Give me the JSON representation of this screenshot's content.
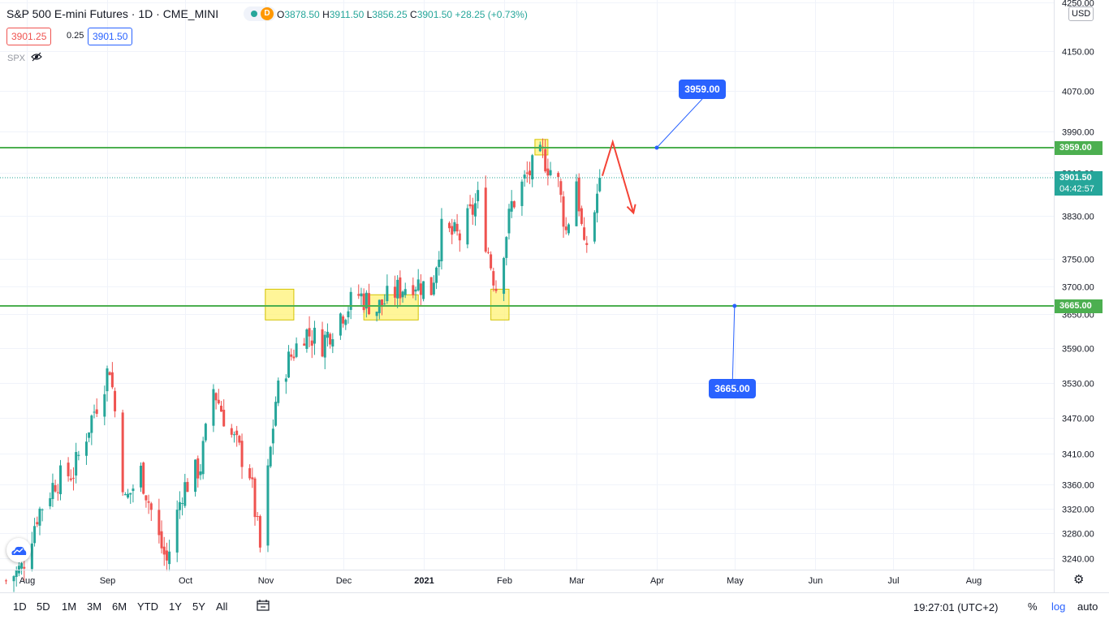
{
  "header": {
    "symbol_title": "S&P 500 E-mini Futures · 1D · CME_MINI",
    "status_badge": "D",
    "ohlc": {
      "o_label": "O",
      "o": "3878.50",
      "h_label": "H",
      "h": "3911.50",
      "l_label": "L",
      "l": "3856.25",
      "c_label": "C",
      "c": "3901.50",
      "change": "+28.25 (+0.73%)"
    },
    "bid": "3901.25",
    "spread": "0.25",
    "ask": "3901.50",
    "compare_symbol": "SPX",
    "eye_icon": "eye-hidden-icon",
    "currency": "USD"
  },
  "colors": {
    "up": "#26a69a",
    "down": "#ef5350",
    "hline": "#4caf50",
    "callout": "#2962ff",
    "arrow": "#f44336",
    "highlight": "#fff176"
  },
  "price_labels": {
    "resistance": "3959.00",
    "last_price": "3901.50",
    "countdown": "04:42:57",
    "support": "3665.00"
  },
  "callouts": {
    "top": "3959.00",
    "bottom": "3665.00"
  },
  "chart_data": {
    "type": "candlestick",
    "y_axis": {
      "scale": "log",
      "ticks": [
        "4250.00",
        "4150.00",
        "4070.00",
        "3990.00",
        "3910.00",
        "3830.00",
        "3750.00",
        "3700.00",
        "3650.00",
        "3590.00",
        "3530.00",
        "3470.00",
        "3410.00",
        "3360.00",
        "3320.00",
        "3280.00",
        "3240.00"
      ]
    },
    "x_axis": {
      "ticks": [
        {
          "label": "Aug",
          "date": "2020-08-01"
        },
        {
          "label": "Sep",
          "date": "2020-09-01"
        },
        {
          "label": "Oct",
          "date": "2020-10-01"
        },
        {
          "label": "Nov",
          "date": "2020-11-01"
        },
        {
          "label": "Dec",
          "date": "2020-12-01"
        },
        {
          "label": "2021",
          "date": "2021-01-01"
        },
        {
          "label": "Feb",
          "date": "2021-02-01"
        },
        {
          "label": "Mar",
          "date": "2021-03-01"
        },
        {
          "label": "Apr",
          "date": "2021-04-01"
        },
        {
          "label": "May",
          "date": "2021-05-01"
        },
        {
          "label": "Jun",
          "date": "2021-06-01"
        },
        {
          "label": "Jul",
          "date": "2021-07-01"
        },
        {
          "label": "Aug",
          "date": "2021-08-01"
        }
      ]
    },
    "candles_start": "2020-07-24",
    "candles_end": "2021-03-10",
    "close_path": [
      {
        "date": "2020-07-24",
        "close": 3205
      },
      {
        "date": "2020-07-30",
        "close": 3225
      },
      {
        "date": "2020-08-05",
        "close": 3310
      },
      {
        "date": "2020-08-12",
        "close": 3365
      },
      {
        "date": "2020-08-19",
        "close": 3380
      },
      {
        "date": "2020-08-26",
        "close": 3470
      },
      {
        "date": "2020-09-02",
        "close": 3560
      },
      {
        "date": "2020-09-08",
        "close": 3330
      },
      {
        "date": "2020-09-14",
        "close": 3380
      },
      {
        "date": "2020-09-21",
        "close": 3270
      },
      {
        "date": "2020-09-24",
        "close": 3235
      },
      {
        "date": "2020-09-30",
        "close": 3350
      },
      {
        "date": "2020-10-07",
        "close": 3390
      },
      {
        "date": "2020-10-12",
        "close": 3520
      },
      {
        "date": "2020-10-19",
        "close": 3440
      },
      {
        "date": "2020-10-26",
        "close": 3380
      },
      {
        "date": "2020-10-30",
        "close": 3255
      },
      {
        "date": "2020-11-05",
        "close": 3500
      },
      {
        "date": "2020-11-09",
        "close": 3560
      },
      {
        "date": "2020-11-16",
        "close": 3620
      },
      {
        "date": "2020-11-23",
        "close": 3600
      },
      {
        "date": "2020-11-30",
        "close": 3650
      },
      {
        "date": "2020-12-07",
        "close": 3685
      },
      {
        "date": "2020-12-14",
        "close": 3660
      },
      {
        "date": "2020-12-21",
        "close": 3690
      },
      {
        "date": "2020-12-28",
        "close": 3710
      },
      {
        "date": "2021-01-04",
        "close": 3695
      },
      {
        "date": "2021-01-08",
        "close": 3800
      },
      {
        "date": "2021-01-15",
        "close": 3790
      },
      {
        "date": "2021-01-22",
        "close": 3860
      },
      {
        "date": "2021-01-27",
        "close": 3740
      },
      {
        "date": "2021-01-29",
        "close": 3700
      },
      {
        "date": "2021-02-04",
        "close": 3850
      },
      {
        "date": "2021-02-10",
        "close": 3905
      },
      {
        "date": "2021-02-16",
        "close": 3945
      },
      {
        "date": "2021-02-22",
        "close": 3890
      },
      {
        "date": "2021-02-25",
        "close": 3800
      },
      {
        "date": "2021-03-01",
        "close": 3900
      },
      {
        "date": "2021-03-04",
        "close": 3760
      },
      {
        "date": "2021-03-08",
        "close": 3840
      },
      {
        "date": "2021-03-10",
        "close": 3901.5
      }
    ],
    "horizontal_lines": [
      {
        "price": 3959.0
      },
      {
        "price": 3665.0
      }
    ],
    "current_price": 3901.5,
    "highlight_zones": [
      {
        "from": "2020-11-01",
        "to": "2020-11-12",
        "low": 3640,
        "high": 3695
      },
      {
        "from": "2020-12-09",
        "to": "2020-12-30",
        "low": 3640,
        "high": 3685
      },
      {
        "from": "2021-01-27",
        "to": "2021-02-03",
        "low": 3640,
        "high": 3695
      },
      {
        "from": "2021-02-13",
        "to": "2021-02-18",
        "low": 3945,
        "high": 3975
      }
    ],
    "forecast_path": [
      {
        "date": "2021-03-11",
        "price": 3905
      },
      {
        "date": "2021-03-15",
        "price": 3970
      },
      {
        "date": "2021-03-23",
        "price": 3835
      }
    ],
    "callout_anchors": [
      {
        "date": "2021-04-01",
        "price": 3959.0
      },
      {
        "date": "2021-05-01",
        "price": 3665.0
      }
    ]
  },
  "settings_icon": "gear-icon",
  "logo_icon": "tradingview-cloud-icon",
  "bottom_bar": {
    "timeframes": [
      "1D",
      "5D",
      "1M",
      "3M",
      "6M",
      "YTD",
      "1Y",
      "5Y",
      "All"
    ],
    "calendar_icon": "calendar-range-icon",
    "clock": "19:27:01 (UTC+2)",
    "percent": "%",
    "log": "log",
    "auto": "auto"
  }
}
